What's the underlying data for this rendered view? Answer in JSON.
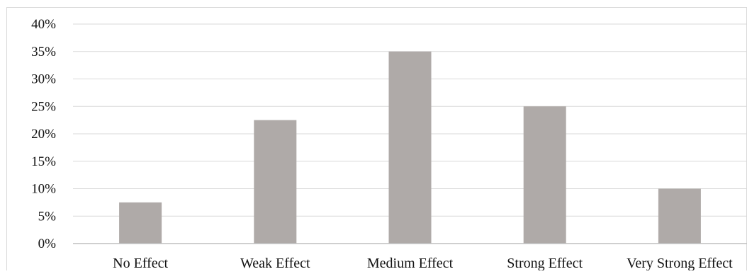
{
  "chart_data": {
    "type": "bar",
    "title": "",
    "xlabel": "",
    "ylabel": "",
    "categories": [
      "No Effect",
      "Weak Effect",
      "Medium Effect",
      "Strong Effect",
      "Very Strong Effect"
    ],
    "values": [
      7.5,
      22.5,
      35,
      25,
      10
    ],
    "ylim": [
      0,
      40
    ],
    "y_ticks": [
      "0%",
      "5%",
      "10%",
      "15%",
      "20%",
      "25%",
      "30%",
      "35%",
      "40%"
    ],
    "grid": true,
    "legend": "none",
    "colors": {
      "bar": "#afaaa8",
      "grid": "#d9d9d9",
      "axis": "#bfbfbf",
      "frame": "#d9d9d9"
    }
  }
}
